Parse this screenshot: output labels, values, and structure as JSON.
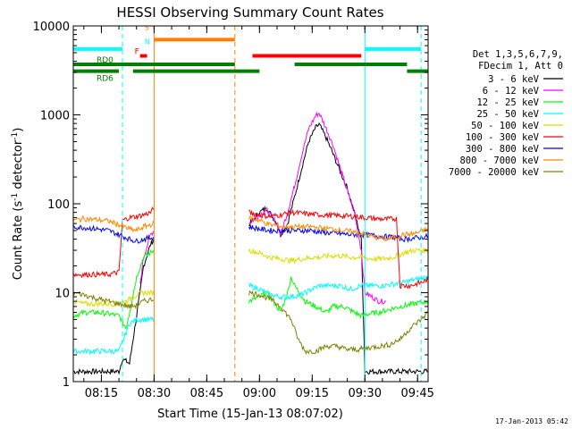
{
  "chart_data": {
    "type": "line",
    "title": "HESSI Observing Summary Count Rates",
    "xlabel": "Start Time (15-Jan-13 08:07:02)",
    "ylabel": "Count Rate (s",
    "ylabel_sup1": "-1",
    "ylabel_mid": " detector",
    "ylabel_sup2": "-1",
    "ylabel_end": ")",
    "y_scale": "log",
    "ylim": [
      1,
      10000
    ],
    "xlim_minutes": [
      487,
      588
    ],
    "x_ticks": [
      {
        "m": 495,
        "label": "08:15"
      },
      {
        "m": 510,
        "label": "08:30"
      },
      {
        "m": 525,
        "label": "08:45"
      },
      {
        "m": 540,
        "label": "09:00"
      },
      {
        "m": 555,
        "label": "09:15"
      },
      {
        "m": 570,
        "label": "09:30"
      },
      {
        "m": 585,
        "label": "09:45"
      }
    ],
    "y_ticks": [
      {
        "v": 1,
        "label": "1"
      },
      {
        "v": 10,
        "label": "10"
      },
      {
        "v": 100,
        "label": "100"
      },
      {
        "v": 1000,
        "label": "1000"
      },
      {
        "v": 10000,
        "label": "10000"
      }
    ],
    "legend_header": [
      "Det 1,3,5,6,7,9,",
      "FDecim 1, Att 0"
    ],
    "legend_placement": "right",
    "series": [
      {
        "name": "3 - 6 keV",
        "color": "#000000",
        "points": [
          [
            487,
            1.3
          ],
          [
            500,
            1.3
          ],
          [
            501,
            1.8
          ],
          [
            503,
            1.6
          ],
          [
            506,
            10
          ],
          [
            507,
            20
          ],
          [
            509,
            35
          ],
          [
            510,
            40
          ],
          [
            537,
            58
          ],
          [
            540,
            80
          ],
          [
            542,
            90
          ],
          [
            545,
            60
          ],
          [
            546,
            45
          ],
          [
            548,
            60
          ],
          [
            550,
            120
          ],
          [
            552,
            250
          ],
          [
            554,
            500
          ],
          [
            556,
            720
          ],
          [
            557,
            780
          ],
          [
            559,
            550
          ],
          [
            561,
            360
          ],
          [
            563,
            230
          ],
          [
            565,
            150
          ],
          [
            567,
            80
          ],
          [
            569,
            40
          ],
          [
            570,
            1.3
          ],
          [
            576,
            1.3
          ],
          [
            588,
            1.3
          ]
        ]
      },
      {
        "name": "6 - 12 keV",
        "color": "#ff00ff",
        "points": [
          [
            506,
            12
          ],
          [
            507,
            25
          ],
          [
            509,
            45
          ],
          [
            510,
            50
          ],
          [
            537,
            60
          ],
          [
            540,
            75
          ],
          [
            542,
            85
          ],
          [
            545,
            60
          ],
          [
            546,
            45
          ],
          [
            548,
            80
          ],
          [
            550,
            160
          ],
          [
            552,
            350
          ],
          [
            554,
            700
          ],
          [
            556,
            980
          ],
          [
            557,
            1050
          ],
          [
            559,
            700
          ],
          [
            561,
            450
          ],
          [
            563,
            250
          ],
          [
            565,
            140
          ],
          [
            567,
            80
          ],
          [
            569,
            30
          ],
          [
            570,
            10
          ],
          [
            572,
            9
          ],
          [
            574,
            8
          ],
          [
            576,
            8
          ]
        ]
      },
      {
        "name": "12 - 25 keV",
        "color": "#00ff00",
        "points": [
          [
            487,
            5.5
          ],
          [
            490,
            6
          ],
          [
            494,
            6
          ],
          [
            497,
            5.8
          ],
          [
            500,
            5.5
          ],
          [
            502,
            4
          ],
          [
            503,
            6
          ],
          [
            505,
            15
          ],
          [
            507,
            25
          ],
          [
            510,
            30
          ],
          [
            537,
            8
          ],
          [
            540,
            9
          ],
          [
            542,
            10
          ],
          [
            544,
            8
          ],
          [
            546,
            6
          ],
          [
            548,
            10
          ],
          [
            549,
            15
          ],
          [
            550,
            12
          ],
          [
            553,
            8
          ],
          [
            556,
            7
          ],
          [
            559,
            6
          ],
          [
            561,
            7
          ],
          [
            564,
            7
          ],
          [
            567,
            6
          ],
          [
            569,
            5.5
          ],
          [
            571,
            5.8
          ],
          [
            574,
            6
          ],
          [
            577,
            6.5
          ],
          [
            580,
            7
          ],
          [
            584,
            7.5
          ],
          [
            588,
            8
          ]
        ]
      },
      {
        "name": "25 - 50 keV",
        "color": "#00ffff",
        "points": [
          [
            487,
            2.2
          ],
          [
            500,
            2.2
          ],
          [
            503,
            4.5
          ],
          [
            505,
            5
          ],
          [
            508,
            5
          ],
          [
            510,
            5
          ],
          [
            537,
            12
          ],
          [
            540,
            11
          ],
          [
            543,
            9.5
          ],
          [
            546,
            9
          ],
          [
            549,
            9
          ],
          [
            552,
            9.5
          ],
          [
            555,
            11
          ],
          [
            557,
            12
          ],
          [
            560,
            12
          ],
          [
            563,
            12
          ],
          [
            566,
            11
          ],
          [
            569,
            12
          ],
          [
            572,
            12
          ],
          [
            575,
            12
          ],
          [
            578,
            12.5
          ],
          [
            581,
            13
          ],
          [
            584,
            14
          ],
          [
            588,
            15
          ]
        ]
      },
      {
        "name": "50 - 100 keV",
        "color": "#dddd00",
        "points": [
          [
            487,
            8
          ],
          [
            490,
            7.5
          ],
          [
            494,
            7.5
          ],
          [
            497,
            7.5
          ],
          [
            500,
            7.5
          ],
          [
            502,
            8
          ],
          [
            504,
            9
          ],
          [
            507,
            10
          ],
          [
            510,
            10
          ],
          [
            537,
            30
          ],
          [
            540,
            28
          ],
          [
            543,
            25
          ],
          [
            546,
            24
          ],
          [
            549,
            23
          ],
          [
            552,
            24
          ],
          [
            555,
            25
          ],
          [
            557,
            25
          ],
          [
            560,
            26
          ],
          [
            563,
            26
          ],
          [
            566,
            25
          ],
          [
            569,
            25
          ],
          [
            572,
            24
          ],
          [
            575,
            24
          ],
          [
            578,
            25
          ],
          [
            581,
            28
          ],
          [
            584,
            30
          ],
          [
            588,
            30
          ]
        ]
      },
      {
        "name": "100 - 300 keV",
        "color": "#ff0000",
        "points": [
          [
            487,
            16
          ],
          [
            490,
            16
          ],
          [
            494,
            16
          ],
          [
            497,
            16
          ],
          [
            500,
            17
          ],
          [
            501,
            65
          ],
          [
            503,
            70
          ],
          [
            505,
            72
          ],
          [
            507,
            75
          ],
          [
            509,
            80
          ],
          [
            510,
            90
          ],
          [
            537,
            80
          ],
          [
            540,
            75
          ],
          [
            543,
            72
          ],
          [
            546,
            75
          ],
          [
            549,
            80
          ],
          [
            552,
            78
          ],
          [
            555,
            76
          ],
          [
            558,
            75
          ],
          [
            561,
            74
          ],
          [
            564,
            73
          ],
          [
            567,
            72
          ],
          [
            570,
            70
          ],
          [
            573,
            68
          ],
          [
            576,
            67
          ],
          [
            579,
            68
          ],
          [
            580,
            12
          ],
          [
            583,
            12
          ],
          [
            586,
            13
          ],
          [
            588,
            14
          ]
        ]
      },
      {
        "name": "300 - 800 keV",
        "color": "#0000ff",
        "points": [
          [
            487,
            55
          ],
          [
            490,
            54
          ],
          [
            494,
            52
          ],
          [
            497,
            50
          ],
          [
            500,
            45
          ],
          [
            503,
            40
          ],
          [
            505,
            38
          ],
          [
            507,
            40
          ],
          [
            510,
            42
          ],
          [
            537,
            55
          ],
          [
            540,
            52
          ],
          [
            543,
            50
          ],
          [
            546,
            50
          ],
          [
            549,
            50
          ],
          [
            552,
            50
          ],
          [
            555,
            50
          ],
          [
            557,
            48
          ],
          [
            560,
            47
          ],
          [
            563,
            46
          ],
          [
            566,
            45
          ],
          [
            569,
            45
          ],
          [
            572,
            44
          ],
          [
            575,
            43
          ],
          [
            578,
            42
          ],
          [
            581,
            40
          ],
          [
            584,
            41
          ],
          [
            588,
            43
          ]
        ]
      },
      {
        "name": "800 - 7000 keV",
        "color": "#ff8800",
        "points": [
          [
            487,
            65
          ],
          [
            490,
            68
          ],
          [
            494,
            66
          ],
          [
            497,
            64
          ],
          [
            500,
            58
          ],
          [
            503,
            52
          ],
          [
            505,
            50
          ],
          [
            507,
            55
          ],
          [
            510,
            60
          ],
          [
            537,
            70
          ],
          [
            540,
            65
          ],
          [
            543,
            58
          ],
          [
            546,
            56
          ],
          [
            549,
            55
          ],
          [
            552,
            55
          ],
          [
            555,
            55
          ],
          [
            558,
            53
          ],
          [
            561,
            52
          ],
          [
            564,
            50
          ],
          [
            567,
            48
          ],
          [
            570,
            45
          ],
          [
            573,
            42
          ],
          [
            576,
            40
          ],
          [
            579,
            42
          ],
          [
            581,
            45
          ],
          [
            584,
            46
          ],
          [
            588,
            52
          ]
        ]
      },
      {
        "name": "7000 - 20000 keV",
        "color": "#808000",
        "points": [
          [
            487,
            10
          ],
          [
            490,
            9.5
          ],
          [
            494,
            8.5
          ],
          [
            497,
            8
          ],
          [
            500,
            7.5
          ],
          [
            503,
            7
          ],
          [
            505,
            7.2
          ],
          [
            507,
            8
          ],
          [
            510,
            8.5
          ],
          [
            537,
            10
          ],
          [
            540,
            9.5
          ],
          [
            543,
            8.5
          ],
          [
            546,
            7
          ],
          [
            549,
            5
          ],
          [
            551,
            3
          ],
          [
            553,
            2.2
          ],
          [
            556,
            2.2
          ],
          [
            559,
            2.5
          ],
          [
            562,
            2.5
          ],
          [
            565,
            2.3
          ],
          [
            568,
            2.3
          ],
          [
            571,
            2.4
          ],
          [
            574,
            2.5
          ],
          [
            577,
            2.6
          ],
          [
            580,
            3
          ],
          [
            583,
            4
          ],
          [
            586,
            5
          ],
          [
            588,
            6
          ]
        ]
      }
    ],
    "bars": [
      {
        "label": "",
        "color": "#00ffff",
        "y": 5500,
        "segments": [
          [
            487,
            501
          ],
          [
            570,
            586
          ]
        ]
      },
      {
        "label": "RD0",
        "color": "#008000",
        "y": 3700,
        "segments": [
          [
            487,
            533
          ],
          [
            550,
            582
          ]
        ]
      },
      {
        "label": "RD6",
        "color": "#008000",
        "y": 3100,
        "segments": [
          [
            487,
            500
          ],
          [
            504,
            540
          ],
          [
            582,
            588
          ]
        ]
      },
      {
        "label": "",
        "color": "#ff8000",
        "y": 7000,
        "segments": [
          [
            510,
            533
          ]
        ]
      },
      {
        "label": "",
        "color": "#ff0000",
        "y": 4600,
        "segments": [
          [
            538,
            569
          ]
        ]
      },
      {
        "label": "F",
        "color": "#ff0000",
        "y": 4600,
        "segments": [
          [
            506,
            508
          ]
        ]
      }
    ],
    "bar_letters": {
      "s": "S",
      "n": "N"
    },
    "vertical_lines": [
      {
        "m": 487,
        "color": "#00ffff",
        "style": "solid"
      },
      {
        "m": 501,
        "color": "#00ffff",
        "style": "dashed"
      },
      {
        "m": 510,
        "color": "#ff8000",
        "style": "solid"
      },
      {
        "m": 533,
        "color": "#ff8000",
        "style": "dashed"
      },
      {
        "m": 570,
        "color": "#00ffff",
        "style": "solid"
      },
      {
        "m": 586,
        "color": "#00ffff",
        "style": "dashed"
      }
    ],
    "gaps": [
      [
        510,
        537
      ]
    ],
    "footer_date": "17-Jan-2013 05:42"
  }
}
